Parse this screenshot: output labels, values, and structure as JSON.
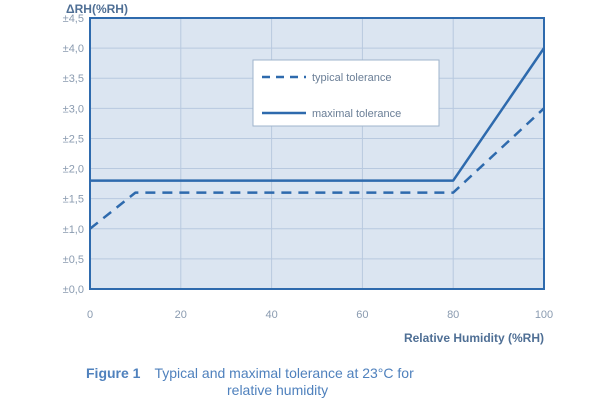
{
  "chart_data": {
    "type": "line",
    "ylabel": "ΔRH(%RH)",
    "xlabel": "Relative Humidity (%RH)",
    "xlim": [
      0,
      100
    ],
    "ylim": [
      0,
      4.5
    ],
    "x_ticks": [
      "0",
      "20",
      "40",
      "60",
      "80",
      "100"
    ],
    "y_ticks": [
      "±0,0",
      "±0,5",
      "±1,0",
      "±1,5",
      "±2,0",
      "±2,5",
      "±3,0",
      "±3,5",
      "±4,0",
      "±4,5"
    ],
    "grid": true,
    "legend_position": "top-right inside",
    "series": [
      {
        "name": "typical tolerance",
        "style": "dashed",
        "color": "#2e6aad",
        "x": [
          0,
          10,
          80,
          100
        ],
        "y": [
          1.0,
          1.6,
          1.6,
          3.0
        ]
      },
      {
        "name": "maximal tolerance",
        "style": "solid",
        "color": "#2e6aad",
        "x": [
          0,
          80,
          100
        ],
        "y": [
          1.8,
          1.8,
          4.0
        ]
      }
    ]
  },
  "caption": {
    "label": "Figure 1",
    "text_line1": "Typical and maximal tolerance at 23°C for",
    "text_line2": "relative humidity"
  },
  "colors": {
    "plot_bg": "#dbe5f1",
    "axis": "#2e6aad",
    "grid": "#b8c9df",
    "text": "#4f81bd"
  }
}
